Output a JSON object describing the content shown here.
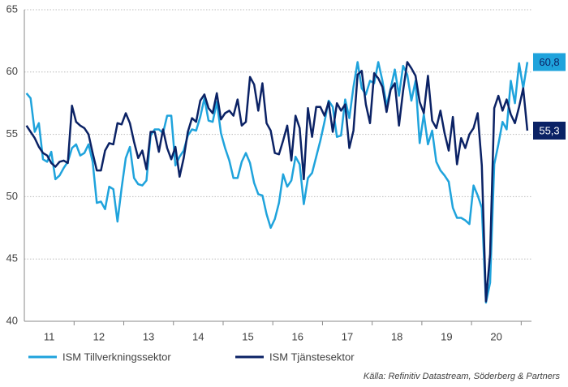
{
  "chart_data": {
    "type": "line",
    "x": [
      0,
      1,
      2,
      3,
      4,
      5,
      6,
      7,
      8,
      9,
      10,
      11,
      12,
      13,
      14,
      15,
      16,
      17,
      18,
      19,
      20,
      21,
      22,
      23,
      24,
      25,
      26,
      27,
      28,
      29,
      30,
      31,
      32,
      33,
      34,
      35,
      36,
      37,
      38,
      39,
      40,
      41,
      42,
      43,
      44,
      45,
      46,
      47,
      48,
      49,
      50,
      51,
      52,
      53,
      54,
      55,
      56,
      57,
      58,
      59,
      60,
      61,
      62,
      63,
      64,
      65,
      66,
      67,
      68,
      69,
      70,
      71,
      72,
      73,
      74,
      75,
      76,
      77,
      78,
      79,
      80,
      81,
      82,
      83,
      84,
      85,
      86,
      87,
      88,
      89,
      90,
      91,
      92,
      93,
      94,
      95,
      96,
      97,
      98,
      99,
      100,
      101,
      102,
      103,
      104,
      105,
      106,
      107,
      108,
      109,
      110,
      111,
      112,
      113,
      114,
      115,
      116,
      117,
      118,
      119,
      120,
      121
    ],
    "series": [
      {
        "name": "ISM Tillverkningssektor",
        "color": "#1fa3dc",
        "values": [
          58.3,
          57.9,
          55.2,
          55.9,
          53.0,
          52.8,
          53.6,
          51.4,
          51.7,
          52.3,
          52.8,
          53.9,
          54.2,
          53.3,
          53.5,
          54.2,
          52.8,
          49.5,
          49.6,
          49.0,
          50.8,
          50.6,
          48.0,
          50.7,
          53.1,
          54.0,
          51.5,
          51.0,
          50.9,
          51.3,
          54.9,
          55.4,
          55.4,
          55.1,
          56.5,
          56.5,
          52.5,
          53.2,
          53.7,
          54.9,
          55.4,
          55.3,
          56.4,
          57.9,
          56.1,
          56.0,
          57.6,
          55.1,
          53.9,
          52.9,
          51.5,
          51.5,
          52.8,
          53.5,
          52.7,
          51.1,
          50.2,
          50.1,
          48.6,
          47.5,
          48.2,
          49.5,
          51.8,
          50.8,
          51.3,
          53.2,
          52.6,
          49.4,
          51.5,
          51.9,
          53.2,
          54.5,
          56.0,
          57.7,
          57.2,
          54.8,
          54.9,
          57.8,
          56.3,
          58.8,
          60.8,
          58.7,
          58.2,
          59.3,
          59.1,
          60.8,
          59.3,
          57.3,
          58.7,
          60.2,
          58.1,
          60.5,
          59.8,
          57.7,
          59.3,
          54.3,
          56.6,
          54.2,
          55.3,
          52.8,
          52.1,
          51.7,
          51.2,
          49.1,
          48.3,
          48.3,
          48.1,
          47.8,
          50.9,
          50.1,
          49.1,
          41.5,
          43.1,
          52.6,
          54.2,
          56.0,
          55.4,
          59.3,
          57.5,
          60.7,
          58.7,
          60.8
        ]
      },
      {
        "name": "ISM Tjänstesektor",
        "color": "#0b2265",
        "values": [
          55.7,
          55.2,
          54.7,
          54.0,
          53.5,
          53.3,
          52.7,
          52.4,
          52.8,
          52.9,
          52.7,
          57.3,
          56.0,
          55.7,
          55.5,
          55.0,
          53.5,
          52.1,
          52.1,
          53.7,
          54.3,
          54.2,
          55.9,
          55.8,
          56.7,
          55.9,
          54.4,
          53.1,
          53.7,
          52.2,
          55.2,
          55.2,
          53.6,
          55.4,
          53.9,
          53.0,
          54.0,
          51.6,
          53.1,
          55.2,
          56.3,
          56.0,
          57.7,
          58.2,
          57.1,
          56.7,
          58.3,
          56.2,
          56.7,
          56.9,
          56.5,
          57.8,
          55.7,
          56.0,
          59.6,
          59.0,
          56.9,
          59.1,
          55.9,
          55.3,
          53.5,
          53.4,
          54.5,
          55.7,
          52.9,
          56.5,
          55.5,
          51.4,
          57.1,
          54.8,
          57.2,
          57.2,
          56.5,
          57.6,
          55.2,
          57.5,
          56.9,
          57.4,
          53.9,
          55.3,
          59.8,
          60.1,
          57.4,
          55.9,
          59.9,
          59.5,
          58.8,
          56.8,
          58.6,
          59.1,
          55.7,
          58.5,
          60.8,
          60.3,
          59.7,
          57.6,
          56.7,
          59.7,
          56.1,
          55.5,
          56.9,
          55.1,
          53.7,
          56.4,
          52.6,
          54.7,
          53.9,
          55.0,
          55.5,
          56.7,
          52.5,
          41.6,
          45.4,
          57.1,
          58.1,
          56.9,
          57.8,
          56.6,
          55.9,
          57.2,
          58.7,
          55.3
        ]
      }
    ],
    "xlim": [
      -0.5,
      122
    ],
    "xticks": [
      {
        "value": 5.5,
        "label": "11"
      },
      {
        "value": 17.5,
        "label": "12"
      },
      {
        "value": 29.5,
        "label": "13"
      },
      {
        "value": 41.5,
        "label": "14"
      },
      {
        "value": 53.5,
        "label": "15"
      },
      {
        "value": 65.5,
        "label": "16"
      },
      {
        "value": 77.5,
        "label": "17"
      },
      {
        "value": 89.5,
        "label": "18"
      },
      {
        "value": 101.5,
        "label": "19"
      },
      {
        "value": 113.5,
        "label": "20"
      }
    ],
    "ylim": [
      40,
      65
    ],
    "yticks": [
      40,
      45,
      50,
      55,
      60,
      65
    ],
    "grid": true,
    "annotations": [
      {
        "text": "60,8",
        "value": 60.8,
        "color": "#1fa3dc",
        "text_color": "#0b2265"
      },
      {
        "text": "55,3",
        "value": 55.3,
        "color": "#0b2265",
        "text_color": "#ffffff"
      }
    ],
    "source": "Källa: Refinitiv Datastream, Söderberg & Partners"
  }
}
